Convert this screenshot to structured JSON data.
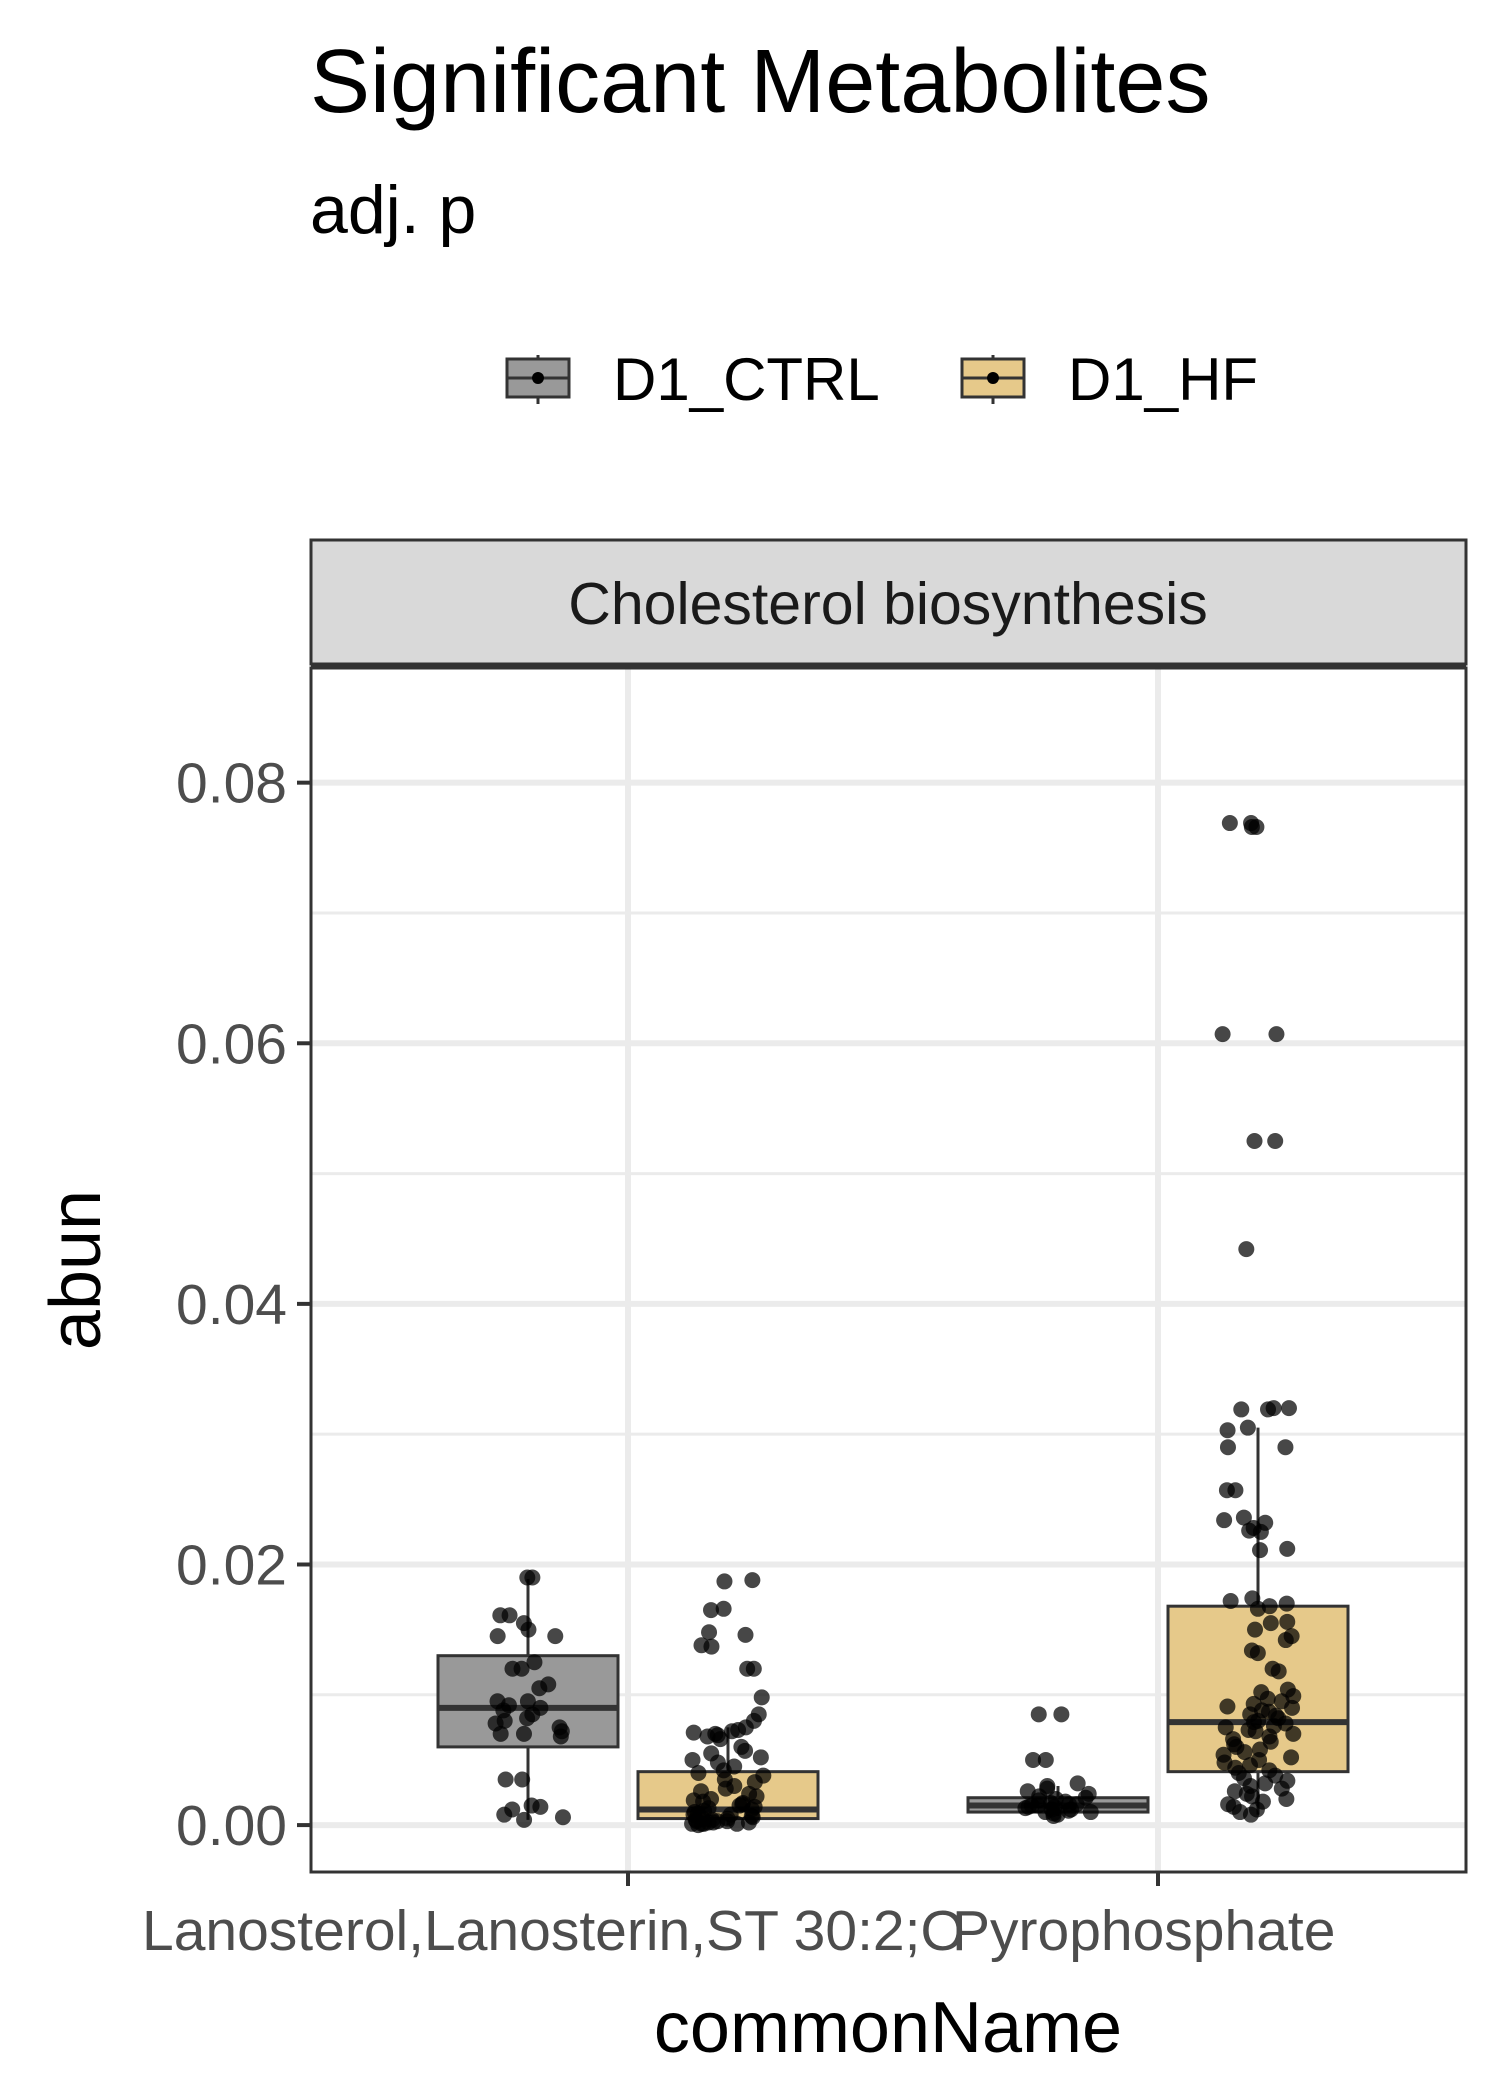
{
  "chart_data": {
    "type": "box",
    "title": "Significant Metabolites",
    "subtitle": "adj. p",
    "xlabel": "commonName",
    "ylabel": "abun",
    "facet": "Cholesterol biosynthesis",
    "categories": [
      "Lanosterol,Lanosterin,ST 30:2;O",
      "Pyrophosphate"
    ],
    "ylim": [
      -0.0036,
      0.0888
    ],
    "yticks": [
      0.0,
      0.02,
      0.04,
      0.06,
      0.08
    ],
    "ytick_labels": [
      "0.00",
      "0.02",
      "0.04",
      "0.06",
      "0.08"
    ],
    "grid": true,
    "legend_position": "top",
    "series": [
      {
        "name": "D1_CTRL",
        "color": "#999999",
        "boxes": [
          {
            "category": "Lanosterol,Lanosterin,ST 30:2;O",
            "whisker_low": 0.0004,
            "q1": 0.006,
            "median": 0.009,
            "q3": 0.013,
            "whisker_high": 0.0189
          },
          {
            "category": "Pyrophosphate",
            "whisker_low": 0.0007,
            "q1": 0.001,
            "median": 0.0015,
            "q3": 0.0021,
            "whisker_high": 0.003
          }
        ],
        "points": [
          [
            0.019,
            0.019,
            0.0161,
            0.0161,
            0.0155,
            0.015,
            0.0145,
            0.0145,
            0.0125,
            0.012,
            0.012,
            0.0108,
            0.0105,
            0.0095,
            0.0095,
            0.0092,
            0.009,
            0.0088,
            0.0085,
            0.0082,
            0.008,
            0.0078,
            0.0075,
            0.0072,
            0.007,
            0.007,
            0.0068,
            0.0035,
            0.0035,
            0.0015,
            0.0014,
            0.0012,
            0.0008,
            0.0006,
            0.0004
          ],
          [
            0.0085,
            0.0085,
            0.005,
            0.005,
            0.0032,
            0.003,
            0.0028,
            0.0026,
            0.0024,
            0.0022,
            0.0021,
            0.002,
            0.0019,
            0.0018,
            0.0017,
            0.0016,
            0.0016,
            0.0015,
            0.0015,
            0.0014,
            0.0014,
            0.0013,
            0.0012,
            0.0012,
            0.0011,
            0.001,
            0.001,
            0.0009,
            0.0008,
            0.0007
          ]
        ]
      },
      {
        "name": "D1_HF",
        "color": "#e6c98a",
        "boxes": [
          {
            "category": "Lanosterol,Lanosterin,ST 30:2;O",
            "whisker_low": 0.0,
            "q1": 0.0005,
            "median": 0.0012,
            "q3": 0.0041,
            "whisker_high": 0.0075
          },
          {
            "category": "Pyrophosphate",
            "whisker_low": 0.0008,
            "q1": 0.0041,
            "median": 0.0079,
            "q3": 0.0168,
            "whisker_high": 0.0305
          }
        ],
        "points": [
          [
            0.0188,
            0.0187,
            0.0166,
            0.0165,
            0.0148,
            0.0146,
            0.0138,
            0.0137,
            0.012,
            0.012,
            0.0098,
            0.0085,
            0.008,
            0.0075,
            0.0073,
            0.0072,
            0.0071,
            0.007,
            0.0069,
            0.0068,
            0.0066,
            0.006,
            0.0057,
            0.0055,
            0.0052,
            0.005,
            0.0048,
            0.0045,
            0.0042,
            0.004,
            0.0038,
            0.0035,
            0.0033,
            0.003,
            0.0028,
            0.0026,
            0.0024,
            0.0022,
            0.002,
            0.0019,
            0.0018,
            0.0017,
            0.0016,
            0.0015,
            0.0014,
            0.0013,
            0.0012,
            0.0011,
            0.001,
            0.0009,
            0.0008,
            0.0008,
            0.0007,
            0.0006,
            0.0005,
            0.0005,
            0.0004,
            0.0004,
            0.0003,
            0.0003,
            0.0003,
            0.0002,
            0.0002,
            0.0002,
            0.0001,
            0.0001,
            0.0001,
            0.0001,
            0.0
          ],
          [
            0.0769,
            0.0769,
            0.0766,
            0.0766,
            0.0607,
            0.0607,
            0.0525,
            0.0525,
            0.0442,
            0.032,
            0.032,
            0.0319,
            0.0319,
            0.0305,
            0.0303,
            0.029,
            0.029,
            0.0257,
            0.0257,
            0.0236,
            0.0234,
            0.0232,
            0.0228,
            0.0226,
            0.0225,
            0.0212,
            0.0211,
            0.0174,
            0.0172,
            0.017,
            0.0168,
            0.0166,
            0.0156,
            0.0155,
            0.015,
            0.0145,
            0.0142,
            0.0134,
            0.0132,
            0.012,
            0.0118,
            0.0104,
            0.0102,
            0.0099,
            0.0097,
            0.0095,
            0.0093,
            0.0091,
            0.009,
            0.0088,
            0.0087,
            0.0085,
            0.0084,
            0.0082,
            0.008,
            0.0079,
            0.0078,
            0.0076,
            0.0075,
            0.0073,
            0.0072,
            0.007,
            0.0068,
            0.0066,
            0.0064,
            0.0062,
            0.006,
            0.0058,
            0.0056,
            0.0054,
            0.0052,
            0.005,
            0.0048,
            0.0046,
            0.0044,
            0.0042,
            0.004,
            0.0038,
            0.0036,
            0.0034,
            0.0032,
            0.003,
            0.0028,
            0.0026,
            0.0024,
            0.0022,
            0.002,
            0.0018,
            0.0016,
            0.0014,
            0.0012,
            0.001,
            0.0008
          ]
        ]
      }
    ]
  }
}
